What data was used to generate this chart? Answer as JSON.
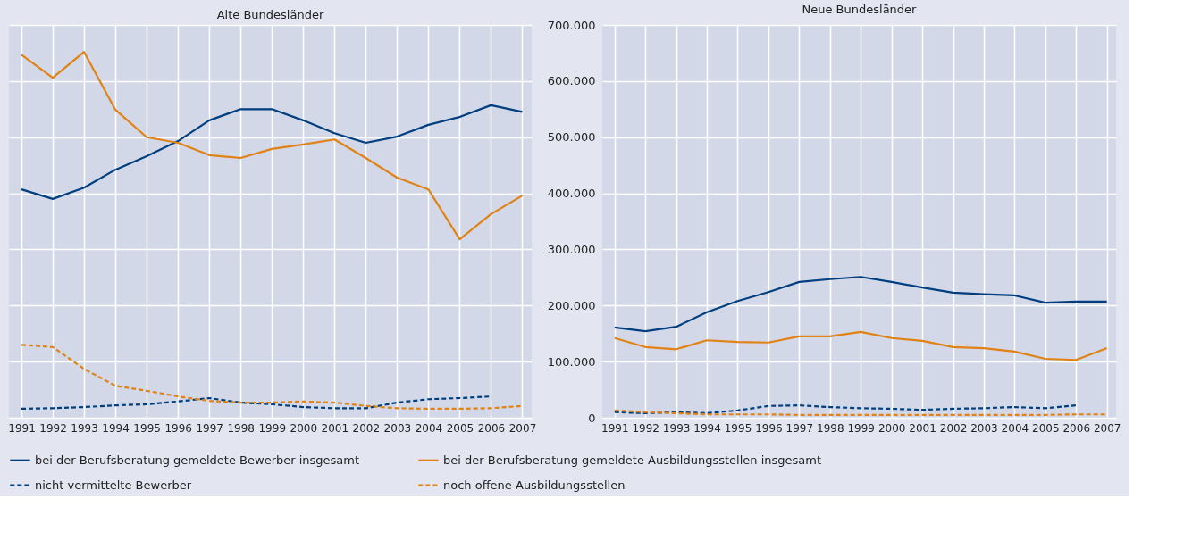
{
  "chart_data": [
    {
      "type": "line",
      "title": "Alte Bundesländer",
      "x": [
        1991,
        1992,
        1993,
        1994,
        1995,
        1996,
        1997,
        1998,
        1999,
        2000,
        2001,
        2002,
        2003,
        2004,
        2005,
        2006,
        2007
      ],
      "xlim": [
        1990.6,
        2007.3
      ],
      "xticks": [
        1991,
        1992,
        1993,
        1994,
        1995,
        1996,
        1997,
        1998,
        1999,
        2000,
        2001,
        2002,
        2003,
        2004,
        2005,
        2006,
        2007
      ],
      "ylim": [
        0,
        700000
      ],
      "yticks": [
        0,
        100000,
        200000,
        300000,
        400000,
        500000,
        600000,
        700000
      ],
      "tick_labels": "x",
      "grid": true,
      "legend": "bottom",
      "marker": "none",
      "series": [
        {
          "name": "bei der Berufsberatung gemeldete Bewerber insgesamt",
          "color": "#003f7f",
          "line_style": "solid",
          "values": [
            407000,
            390000,
            410000,
            442000,
            466000,
            493000,
            530000,
            550000,
            550000,
            530000,
            507000,
            490000,
            501000,
            522000,
            536000,
            557000,
            545000
          ]
        },
        {
          "name": "bei der Berufsberatung gemeldete Ausbildungsstellen insgesamt",
          "color": "#e08214",
          "line_style": "solid",
          "values": [
            647000,
            606000,
            652000,
            549000,
            500000,
            490000,
            468000,
            463000,
            479000,
            487000,
            496000,
            463000,
            428000,
            407000,
            318000,
            363000,
            396000
          ]
        },
        {
          "name": "nicht vermittelte Bewerber",
          "color": "#003f7f",
          "line_style": "dashed",
          "values": [
            16000,
            17000,
            19000,
            22000,
            24000,
            29000,
            35000,
            27000,
            24000,
            19000,
            17000,
            17000,
            27000,
            33000,
            35000,
            38000,
            null
          ]
        },
        {
          "name": "noch offene Ausbildungsstellen",
          "color": "#e08214",
          "line_style": "dashed",
          "values": [
            130000,
            126000,
            87000,
            57000,
            48000,
            38000,
            30000,
            27000,
            27000,
            29000,
            27000,
            21000,
            17000,
            16000,
            16000,
            17000,
            21000
          ]
        }
      ]
    },
    {
      "type": "line",
      "title": "Neue Bundesländer",
      "x": [
        1991,
        1992,
        1993,
        1994,
        1995,
        1996,
        1997,
        1998,
        1999,
        2000,
        2001,
        2002,
        2003,
        2004,
        2005,
        2006,
        2007
      ],
      "xlim": [
        1990.6,
        2007.3
      ],
      "xticks": [
        1991,
        1992,
        1993,
        1994,
        1995,
        1996,
        1997,
        1998,
        1999,
        2000,
        2001,
        2002,
        2003,
        2004,
        2005,
        2006,
        2007
      ],
      "ylim": [
        0,
        700000
      ],
      "yticks": [
        {
          "value": 0,
          "label": "0"
        },
        {
          "value": 100000,
          "label": "100.000"
        },
        {
          "value": 200000,
          "label": "200.000"
        },
        {
          "value": 300000,
          "label": "300.000"
        },
        {
          "value": 400000,
          "label": "400.000"
        },
        {
          "value": 500000,
          "label": "500.000"
        },
        {
          "value": 600000,
          "label": "600.000"
        },
        {
          "value": 700000,
          "label": "700.000"
        }
      ],
      "grid": true,
      "legend": "bottom",
      "marker": "none",
      "series": [
        {
          "name": "bei der Berufsberatung gemeldete Bewerber insgesamt",
          "color": "#003f7f",
          "line_style": "solid",
          "values": [
            161000,
            154000,
            162000,
            188000,
            208000,
            224000,
            242000,
            247000,
            251000,
            242000,
            232000,
            223000,
            220000,
            218000,
            205000,
            207000,
            207000
          ]
        },
        {
          "name": "bei der Berufsberatung gemeldete Ausbildungsstellen insgesamt",
          "color": "#e08214",
          "line_style": "solid",
          "values": [
            142000,
            126000,
            122000,
            138000,
            135000,
            134000,
            145000,
            145000,
            153000,
            142000,
            137000,
            126000,
            124000,
            118000,
            105000,
            103000,
            124000
          ]
        },
        {
          "name": "nicht vermittelte Bewerber",
          "color": "#003f7f",
          "line_style": "dashed",
          "values": [
            10000,
            8000,
            10000,
            8000,
            13000,
            21000,
            22000,
            19000,
            17000,
            16000,
            14000,
            16000,
            17000,
            19000,
            17000,
            22000,
            null
          ]
        },
        {
          "name": "noch offene Ausbildungsstellen",
          "color": "#e08214",
          "line_style": "dashed",
          "values": [
            13000,
            10000,
            8000,
            6000,
            6000,
            6000,
            5000,
            5000,
            5000,
            5000,
            5000,
            5000,
            5000,
            5000,
            5000,
            6000,
            6000
          ]
        }
      ]
    }
  ]
}
